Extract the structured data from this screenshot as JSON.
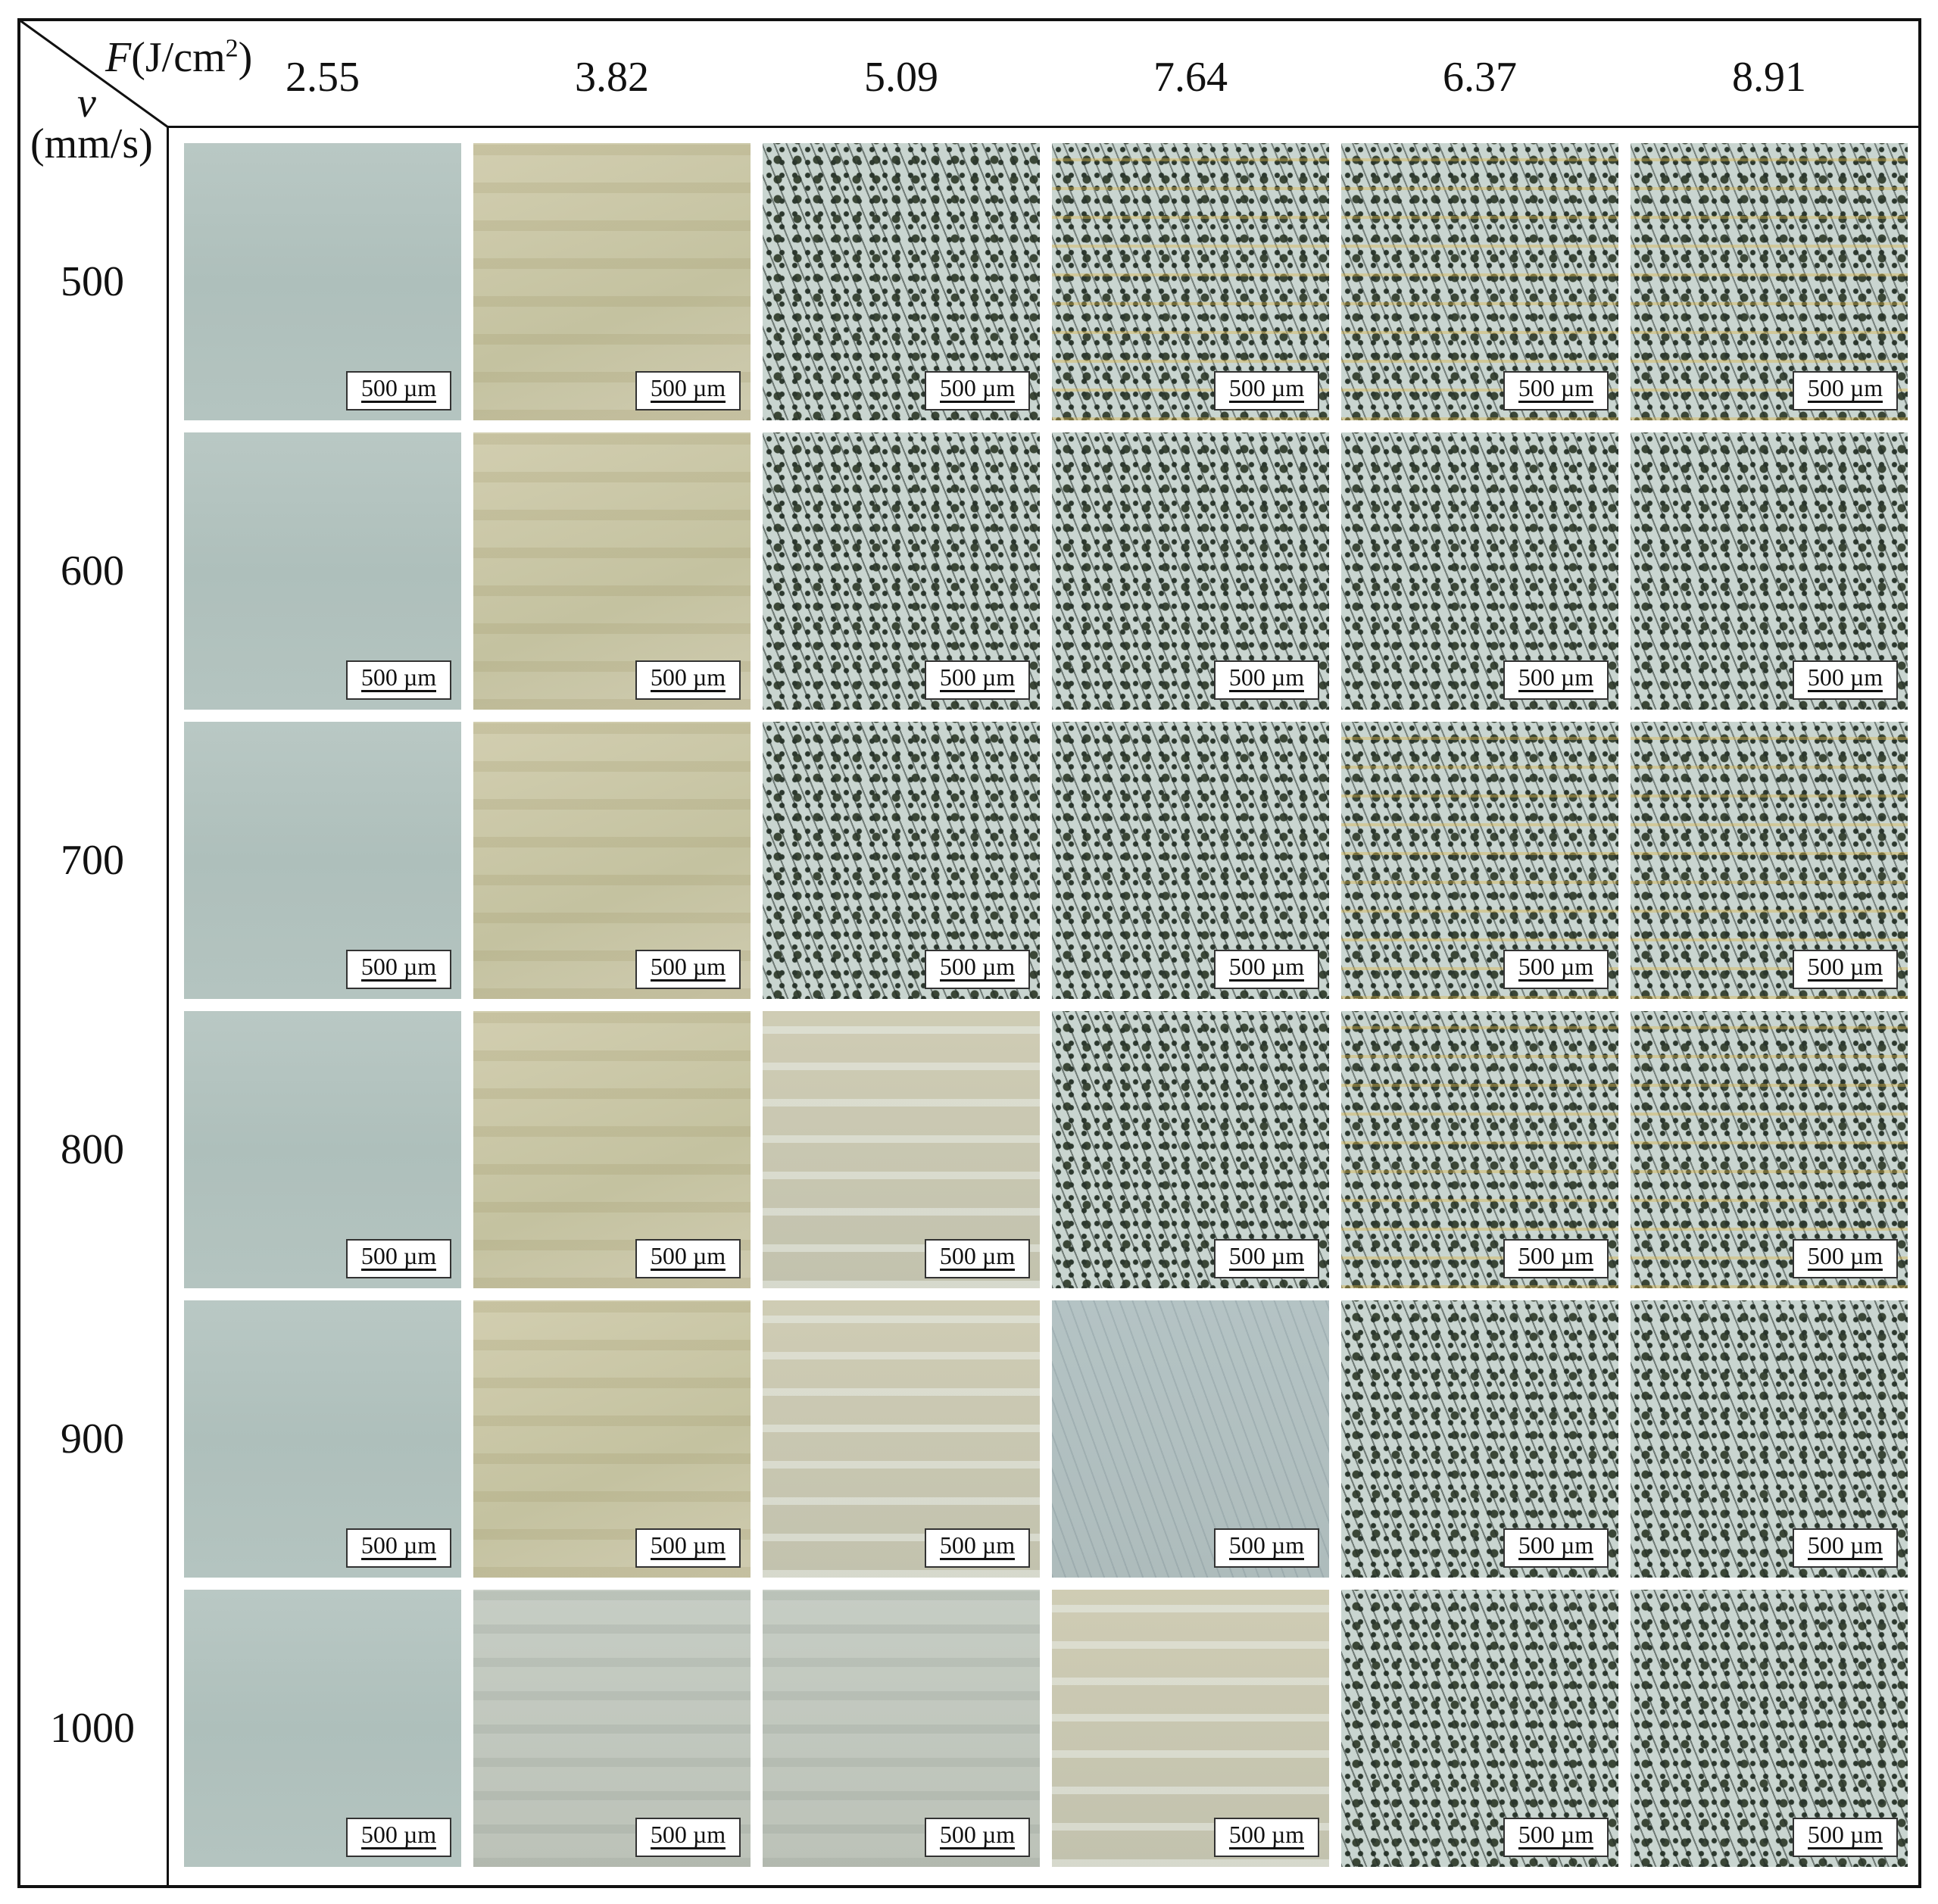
{
  "corner": {
    "symbol_f": "F",
    "unit_f": "(J/cm",
    "unit_f_sup": "2",
    "unit_f_end": ")",
    "symbol_v": "v",
    "unit_v": "(mm/s)"
  },
  "columns": [
    "2.55",
    "3.82",
    "5.09",
    "7.64",
    "6.37",
    "8.91"
  ],
  "rows": [
    "500",
    "600",
    "700",
    "800",
    "900",
    "1000"
  ],
  "scale_bar": "500 µm"
}
